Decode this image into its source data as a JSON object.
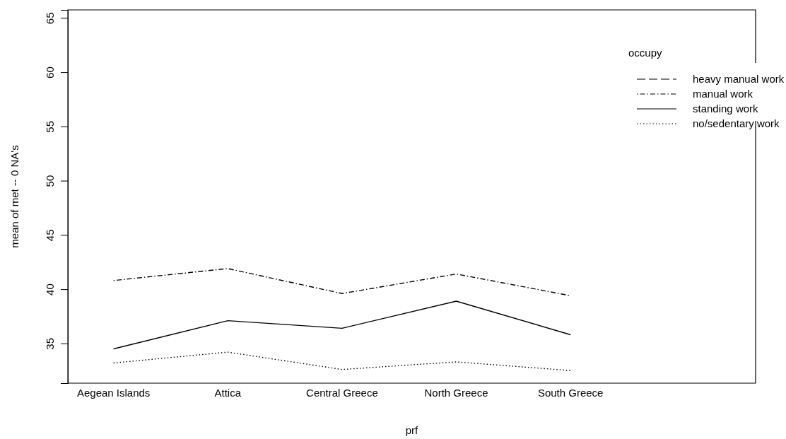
{
  "chart_data": {
    "type": "line",
    "xlabel": "prf",
    "ylabel": "mean of met -- 0 NA's",
    "legend_title": "occupy",
    "categories": [
      "Aegean Islands",
      "Attica",
      "Central Greece",
      "North Greece",
      "South Greece"
    ],
    "series": [
      {
        "name": "heavy manual work",
        "color": "#000000",
        "line_style": "dashed",
        "values": [
          null,
          null,
          null,
          null,
          null
        ]
      },
      {
        "name": "manual work",
        "color": "#000000",
        "line_style": "dashdot",
        "values": [
          40.8,
          41.9,
          39.6,
          41.4,
          39.4
        ]
      },
      {
        "name": "standing work",
        "color": "#000000",
        "line_style": "solid",
        "values": [
          34.5,
          37.1,
          36.4,
          38.9,
          35.8
        ]
      },
      {
        "name": "no/sedentary work",
        "color": "#000000",
        "line_style": "dotted",
        "values": [
          33.2,
          34.2,
          32.6,
          33.3,
          32.5
        ]
      }
    ],
    "ylim": [
      31.34,
      65.74
    ],
    "yticks": [
      35,
      40,
      45,
      50,
      55,
      60,
      65
    ],
    "legend": "top right",
    "grid": false,
    "marker": "none"
  }
}
